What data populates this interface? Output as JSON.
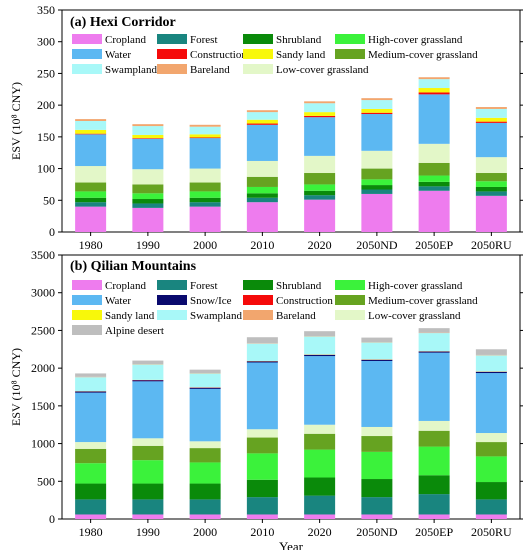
{
  "chart_data": [
    {
      "type": "bar",
      "stacked": true,
      "title": "(a) Hexi Corridor",
      "xlabel": "",
      "ylabel": "ESV (10⁸ CNY)",
      "ylim": [
        0,
        350
      ],
      "yticks": [
        0,
        50,
        100,
        150,
        200,
        250,
        300,
        350
      ],
      "categories": [
        "1980",
        "1990",
        "2000",
        "2010",
        "2020",
        "2050ND",
        "2050EP",
        "2050RU"
      ],
      "legend": [
        {
          "name": "Cropland",
          "color": "#EE7CEE"
        },
        {
          "name": "Forest",
          "color": "#19857F"
        },
        {
          "name": "Shrubland",
          "color": "#0A8A0A"
        },
        {
          "name": "High-cover grassland",
          "color": "#3BF23B"
        },
        {
          "name": "Water",
          "color": "#5CB8F2"
        },
        {
          "name": "Construction",
          "color": "#F50A0A"
        },
        {
          "name": "Sandy land",
          "color": "#F8F80A"
        },
        {
          "name": "Medium-cover grassland",
          "color": "#66A321"
        },
        {
          "name": "Swampland",
          "color": "#A8F8F8"
        },
        {
          "name": "Bareland",
          "color": "#F2A66E"
        },
        {
          "name": "Low-cover grassland",
          "color": "#E3F7C8"
        }
      ],
      "series": [
        {
          "name": "Cropland",
          "color": "#EE7CEE",
          "values": [
            40,
            38,
            40,
            47,
            51,
            60,
            65,
            57
          ]
        },
        {
          "name": "Forest",
          "color": "#19857F",
          "values": [
            7,
            7,
            7,
            7,
            7,
            7,
            7,
            7
          ]
        },
        {
          "name": "Shrubland",
          "color": "#0A8A0A",
          "values": [
            7,
            7,
            7,
            7,
            7,
            7,
            7,
            7
          ]
        },
        {
          "name": "High-cover grassland",
          "color": "#3BF23B",
          "values": [
            10,
            9,
            10,
            10,
            10,
            9,
            10,
            9
          ]
        },
        {
          "name": "Medium-cover grassland",
          "color": "#66A321",
          "values": [
            14,
            14,
            14,
            16,
            18,
            17,
            20,
            13
          ]
        },
        {
          "name": "Low-cover grassland",
          "color": "#E3F7C8",
          "values": [
            26,
            24,
            22,
            25,
            27,
            28,
            30,
            25
          ]
        },
        {
          "name": "Water",
          "color": "#5CB8F2",
          "values": [
            50,
            48,
            48,
            57,
            61,
            58,
            78,
            54
          ]
        },
        {
          "name": "Construction",
          "color": "#F50A0A",
          "values": [
            1,
            1,
            1,
            2,
            2,
            2,
            3,
            2
          ]
        },
        {
          "name": "Sandy land",
          "color": "#F8F80A",
          "values": [
            6,
            5,
            5,
            6,
            6,
            6,
            7,
            6
          ]
        },
        {
          "name": "Swampland",
          "color": "#A8F8F8",
          "values": [
            14,
            14,
            12,
            12,
            14,
            14,
            14,
            14
          ]
        },
        {
          "name": "Bareland",
          "color": "#F2A66E",
          "values": [
            3,
            3,
            3,
            3,
            3,
            3,
            3,
            3
          ]
        }
      ]
    },
    {
      "type": "bar",
      "stacked": true,
      "title": "(b) Qilian Mountains",
      "xlabel": "Year",
      "ylabel": "ESV (10⁸ CNY)",
      "ylim": [
        0,
        3500
      ],
      "yticks": [
        0,
        500,
        1000,
        1500,
        2000,
        2500,
        3000,
        3500
      ],
      "categories": [
        "1980",
        "1990",
        "2000",
        "2010",
        "2020",
        "2050ND",
        "2050EP",
        "2050RU"
      ],
      "legend": [
        {
          "name": "Cropland",
          "color": "#EE7CEE"
        },
        {
          "name": "Forest",
          "color": "#19857F"
        },
        {
          "name": "Shrubland",
          "color": "#0A8A0A"
        },
        {
          "name": "High-cover grassland",
          "color": "#3BF23B"
        },
        {
          "name": "Water",
          "color": "#5CB8F2"
        },
        {
          "name": "Snow/Ice",
          "color": "#0A0A6E"
        },
        {
          "name": "Construction",
          "color": "#F50A0A"
        },
        {
          "name": "Medium-cover grassland",
          "color": "#66A321"
        },
        {
          "name": "Sandy land",
          "color": "#F8F80A"
        },
        {
          "name": "Swampland",
          "color": "#A8F8F8"
        },
        {
          "name": "Bareland",
          "color": "#F2A66E"
        },
        {
          "name": "Low-cover grassland",
          "color": "#E3F7C8"
        },
        {
          "name": "Alpine desert",
          "color": "#BEBEBE"
        }
      ],
      "series": [
        {
          "name": "Cropland",
          "color": "#EE7CEE",
          "values": [
            60,
            60,
            60,
            60,
            60,
            60,
            60,
            60
          ]
        },
        {
          "name": "Forest",
          "color": "#19857F",
          "values": [
            200,
            200,
            200,
            230,
            250,
            230,
            270,
            200
          ]
        },
        {
          "name": "Shrubland",
          "color": "#0A8A0A",
          "values": [
            210,
            210,
            210,
            230,
            240,
            240,
            250,
            230
          ]
        },
        {
          "name": "High-cover grassland",
          "color": "#3BF23B",
          "values": [
            270,
            310,
            280,
            350,
            370,
            360,
            380,
            340
          ]
        },
        {
          "name": "Medium-cover grassland",
          "color": "#66A321",
          "values": [
            190,
            190,
            190,
            210,
            210,
            210,
            210,
            190
          ]
        },
        {
          "name": "Low-cover grassland",
          "color": "#E3F7C8",
          "values": [
            90,
            100,
            90,
            110,
            120,
            120,
            130,
            120
          ]
        },
        {
          "name": "Water",
          "color": "#5CB8F2",
          "values": [
            655,
            755,
            695,
            885,
            910,
            875,
            905,
            795
          ]
        },
        {
          "name": "Snow/Ice",
          "color": "#0A0A6E",
          "values": [
            15,
            15,
            15,
            15,
            15,
            15,
            15,
            15
          ]
        },
        {
          "name": "Construction",
          "color": "#F50A0A",
          "values": [
            3,
            3,
            3,
            3,
            3,
            3,
            3,
            3
          ]
        },
        {
          "name": "Sandy land",
          "color": "#F8F80A",
          "values": [
            2,
            2,
            2,
            2,
            2,
            2,
            2,
            2
          ]
        },
        {
          "name": "Swampland",
          "color": "#A8F8F8",
          "values": [
            185,
            205,
            185,
            230,
            240,
            225,
            240,
            215
          ]
        },
        {
          "name": "Bareland",
          "color": "#F2A66E",
          "values": [
            5,
            5,
            5,
            5,
            5,
            5,
            5,
            5
          ]
        },
        {
          "name": "Alpine desert",
          "color": "#BEBEBE",
          "values": [
            45,
            45,
            45,
            80,
            65,
            60,
            60,
            75
          ]
        }
      ]
    }
  ]
}
